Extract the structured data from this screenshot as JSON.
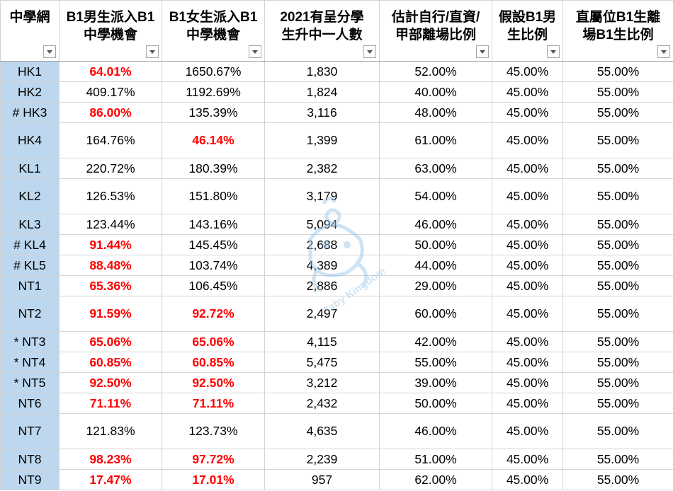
{
  "columns": [
    {
      "line1": "中學網",
      "line2": ""
    },
    {
      "line1": "B1男生派入B1",
      "line2": "中學機會"
    },
    {
      "line1": "B1女生派入B1",
      "line2": "中學機會"
    },
    {
      "line1": "2021有呈分學",
      "line2": "生升中一人數"
    },
    {
      "line1": "估計自行/直資/",
      "line2": "甲部離場比例"
    },
    {
      "line1": "假設B1男",
      "line2": "生比例"
    },
    {
      "line1": "直屬位B1生離",
      "line2": "場B1生比例"
    }
  ],
  "rows": [
    {
      "net": "HK1",
      "boys": "64.01%",
      "girls": "1650.67%",
      "students": "1,830",
      "leave": "52.00%",
      "male": "45.00%",
      "direct": "55.00%",
      "boys_red": true,
      "girls_red": false
    },
    {
      "net": "HK2",
      "boys": "409.17%",
      "girls": "1192.69%",
      "students": "1,824",
      "leave": "40.00%",
      "male": "45.00%",
      "direct": "55.00%",
      "boys_red": false,
      "girls_red": false
    },
    {
      "net": "# HK3",
      "boys": "86.00%",
      "girls": "135.39%",
      "students": "3,116",
      "leave": "48.00%",
      "male": "45.00%",
      "direct": "55.00%",
      "boys_red": true,
      "girls_red": false
    },
    {
      "net": "HK4",
      "boys": "164.76%",
      "girls": "46.14%",
      "students": "1,399",
      "leave": "61.00%",
      "male": "45.00%",
      "direct": "55.00%",
      "boys_red": false,
      "girls_red": true
    },
    {
      "net": "KL1",
      "boys": "220.72%",
      "girls": "180.39%",
      "students": "2,382",
      "leave": "63.00%",
      "male": "45.00%",
      "direct": "55.00%",
      "boys_red": false,
      "girls_red": false
    },
    {
      "net": "KL2",
      "boys": "126.53%",
      "girls": "151.80%",
      "students": "3,179",
      "leave": "54.00%",
      "male": "45.00%",
      "direct": "55.00%",
      "boys_red": false,
      "girls_red": false
    },
    {
      "net": "KL3",
      "boys": "123.44%",
      "girls": "143.16%",
      "students": "5,094",
      "leave": "46.00%",
      "male": "45.00%",
      "direct": "55.00%",
      "boys_red": false,
      "girls_red": false
    },
    {
      "net": "# KL4",
      "boys": "91.44%",
      "girls": "145.45%",
      "students": "2,688",
      "leave": "50.00%",
      "male": "45.00%",
      "direct": "55.00%",
      "boys_red": true,
      "girls_red": false
    },
    {
      "net": "# KL5",
      "boys": "88.48%",
      "girls": "103.74%",
      "students": "4,389",
      "leave": "44.00%",
      "male": "45.00%",
      "direct": "55.00%",
      "boys_red": true,
      "girls_red": false
    },
    {
      "net": "NT1",
      "boys": "65.36%",
      "girls": "106.45%",
      "students": "2,886",
      "leave": "29.00%",
      "male": "45.00%",
      "direct": "55.00%",
      "boys_red": true,
      "girls_red": false
    },
    {
      "net": "NT2",
      "boys": "91.59%",
      "girls": "92.72%",
      "students": "2,497",
      "leave": "60.00%",
      "male": "45.00%",
      "direct": "55.00%",
      "boys_red": true,
      "girls_red": true
    },
    {
      "net": "* NT3",
      "boys": "65.06%",
      "girls": "65.06%",
      "students": "4,115",
      "leave": "42.00%",
      "male": "45.00%",
      "direct": "55.00%",
      "boys_red": true,
      "girls_red": true
    },
    {
      "net": "* NT4",
      "boys": "60.85%",
      "girls": "60.85%",
      "students": "5,475",
      "leave": "55.00%",
      "male": "45.00%",
      "direct": "55.00%",
      "boys_red": true,
      "girls_red": true
    },
    {
      "net": "* NT5",
      "boys": "92.50%",
      "girls": "92.50%",
      "students": "3,212",
      "leave": "39.00%",
      "male": "45.00%",
      "direct": "55.00%",
      "boys_red": true,
      "girls_red": true
    },
    {
      "net": "NT6",
      "boys": "71.11%",
      "girls": "71.11%",
      "students": "2,432",
      "leave": "50.00%",
      "male": "45.00%",
      "direct": "55.00%",
      "boys_red": true,
      "girls_red": true
    },
    {
      "net": "NT7",
      "boys": "121.83%",
      "girls": "123.73%",
      "students": "4,635",
      "leave": "46.00%",
      "male": "45.00%",
      "direct": "55.00%",
      "boys_red": false,
      "girls_red": false
    },
    {
      "net": "NT8",
      "boys": "98.23%",
      "girls": "97.72%",
      "students": "2,239",
      "leave": "51.00%",
      "male": "45.00%",
      "direct": "55.00%",
      "boys_red": true,
      "girls_red": true
    },
    {
      "net": "NT9",
      "boys": "17.47%",
      "girls": "17.01%",
      "students": "957",
      "leave": "62.00%",
      "male": "45.00%",
      "direct": "55.00%",
      "boys_red": true,
      "girls_red": true
    }
  ],
  "watermark": {
    "text": "Baby Kingdom",
    "icon": "baby-kingdom-mascot-icon"
  },
  "colors": {
    "network_column_bg": "#bdd7ee",
    "highlight_text": "#ff0000",
    "gridline": "#d4d4d4"
  }
}
